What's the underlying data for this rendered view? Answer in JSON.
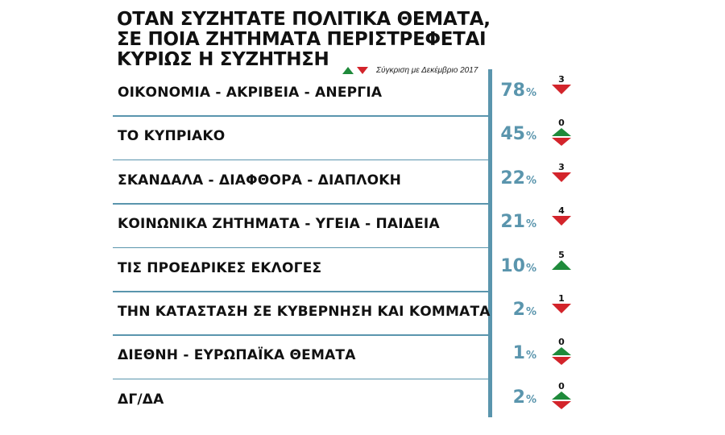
{
  "title_lines": [
    "ΟΤΑΝ ΣΥΖΗΤΑΤΕ ΠΟΛΙΤΙΚΑ ΘΕΜΑΤΑ,",
    "ΣΕ ΠΟΙΑ ΖΗΤΗΜΑΤΑ ΠΕΡΙΣΤΡΕΦΕΤΑΙ",
    "ΚΥΡΙΩΣ Η ΣΥΖΗΤΗΣΗ"
  ],
  "comparison_note": "Σύγκριση με Δεκέμβριο 2017",
  "colors": {
    "accent": "#5a95ad",
    "up": "#1f8a3b",
    "down": "#d3242b"
  },
  "chart_data": {
    "type": "bar",
    "title": "ΟΤΑΝ ΣΥΖΗΤΑΤΕ ΠΟΛΙΤΙΚΑ ΘΕΜΑΤΑ, ΣΕ ΠΟΙΑ ΖΗΤΗΜΑΤΑ ΠΕΡΙΣΤΡΕΦΕΤΑΙ ΚΥΡΙΩΣ Η ΣΥΖΗΤΗΣΗ",
    "unit": "%",
    "categories": [
      "ΟΙΚΟΝΟΜΙΑ - ΑΚΡΙΒΕΙΑ - ΑΝΕΡΓΙΑ",
      "ΤΟ ΚΥΠΡΙΑΚΟ",
      "ΣΚΑΝΔΑΛΑ - ΔΙΑΦΘΟΡΑ - ΔΙΑΠΛΟΚΗ",
      "ΚΟΙΝΩΝΙΚΑ ΖΗΤΗΜΑΤΑ - ΥΓΕΙΑ - ΠΑΙΔΕΙΑ",
      "ΤΙΣ ΠΡΟΕΔΡΙΚΕΣ ΕΚΛΟΓΕΣ",
      "ΤΗΝ ΚΑΤΑΣΤΑΣΗ ΣΕ ΚΥΒΕΡΝΗΣΗ ΚΑΙ ΚΟΜΜΑΤΑ",
      "ΔΙΕΘΝΗ - ΕΥΡΩΠΑΪΚΑ ΘΕΜΑΤΑ",
      "ΔΓ/ΔΑ"
    ],
    "values": [
      78,
      45,
      22,
      21,
      10,
      2,
      1,
      2
    ],
    "changes": [
      {
        "value": "3",
        "direction": "down"
      },
      {
        "value": "0",
        "direction": "same"
      },
      {
        "value": "3",
        "direction": "down"
      },
      {
        "value": "4",
        "direction": "down"
      },
      {
        "value": "5",
        "direction": "up"
      },
      {
        "value": "1",
        "direction": "down"
      },
      {
        "value": "0",
        "direction": "same"
      },
      {
        "value": "0",
        "direction": "same"
      }
    ],
    "legend": [
      "up",
      "down"
    ]
  }
}
